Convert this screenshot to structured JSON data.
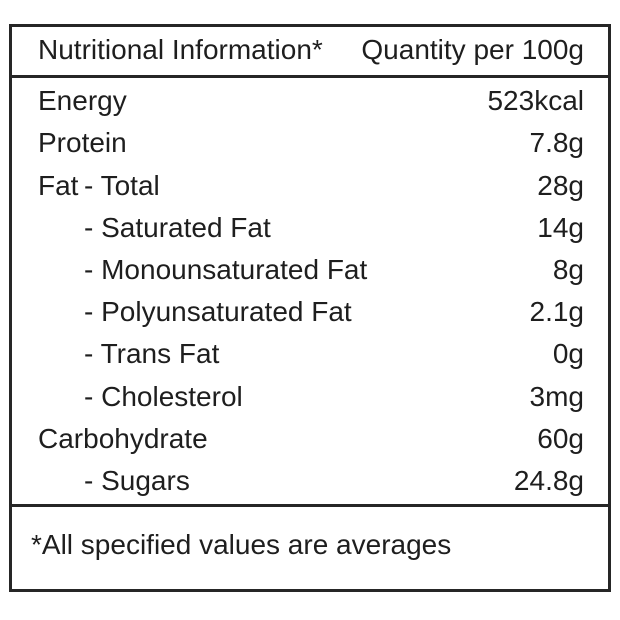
{
  "header": {
    "title": "Nutritional Information*",
    "quantity_column": "Quantity per 100g"
  },
  "table": {
    "rows": [
      {
        "label": "Energy",
        "value": "523kcal",
        "indent": 0
      },
      {
        "label": "Protein",
        "value": "7.8g",
        "indent": 0
      },
      {
        "prefix": "Fat",
        "label": "- Total",
        "value": "28g",
        "indent": 1
      },
      {
        "label": "- Saturated Fat",
        "value": "14g",
        "indent": 1
      },
      {
        "label": "- Monounsaturated Fat",
        "value": "8g",
        "indent": 1
      },
      {
        "label": "- Polyunsaturated Fat",
        "value": "2.1g",
        "indent": 1
      },
      {
        "label": "- Trans Fat",
        "value": "0g",
        "indent": 1
      },
      {
        "label": "- Cholesterol",
        "value": "3mg",
        "indent": 1
      },
      {
        "label": "Carbohydrate",
        "value": "60g",
        "indent": 0
      },
      {
        "label": "- Sugars",
        "value": "24.8g",
        "indent": 1
      }
    ]
  },
  "footer": {
    "footnote": "*All specified values are averages"
  },
  "colors": {
    "background": "#ffffff",
    "text": "#1e1e1e",
    "border": "#262626"
  }
}
